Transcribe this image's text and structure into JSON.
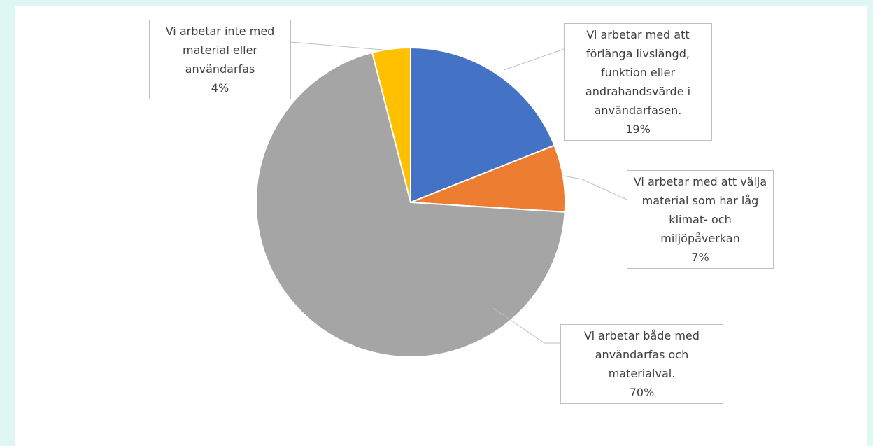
{
  "chart_data": {
    "type": "pie",
    "categories": [
      "Vi arbetar med att förlänga livslängd, funktion eller andrahandsvärde i användarfasen.",
      "Vi arbetar med att välja material som har låg klimat- och miljöpåverkan",
      "Vi arbetar både med användarfas och materialval.",
      "Vi arbetar inte med material eller användarfas"
    ],
    "values": [
      19,
      7,
      70,
      4
    ],
    "value_labels": [
      "19%",
      "7%",
      "70%",
      "4%"
    ],
    "colors": [
      "#4472c4",
      "#ed7d31",
      "#a5a5a5",
      "#ffc000"
    ]
  }
}
